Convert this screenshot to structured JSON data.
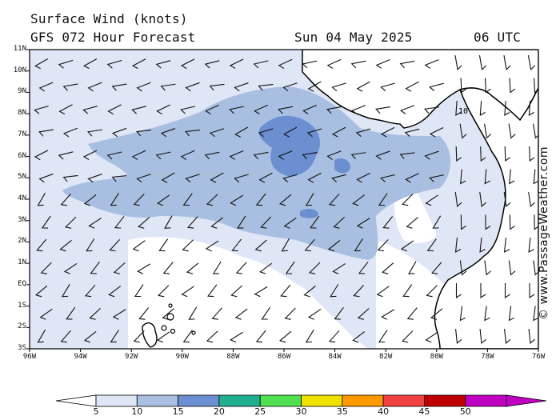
{
  "header": {
    "title": "Surface Wind (knots)",
    "model_forecast": "GFS 072 Hour Forecast",
    "date": "Sun 04 May 2025",
    "time": "06 UTC"
  },
  "map": {
    "latitude_labels": [
      "11N",
      "10N",
      "9N",
      "8N",
      "7N",
      "6N",
      "5N",
      "4N",
      "3N",
      "2N",
      "1N",
      "EQ",
      "1S",
      "2S",
      "3S"
    ],
    "longitude_labels": [
      "96W",
      "94W",
      "92W",
      "90W",
      "88W",
      "86W",
      "84W",
      "82W",
      "80W",
      "78W",
      "76W"
    ],
    "wind_speed_label": "10",
    "credit": "© www.PassageWeather.com",
    "colors": {
      "background": "#ffffff",
      "land_outline": "#000000",
      "barb": "#111111"
    }
  },
  "legend": {
    "labels": [
      "5",
      "10",
      "15",
      "20",
      "25",
      "30",
      "35",
      "40",
      "45",
      "50"
    ],
    "colors": [
      "#dfe6f5",
      "#a9bfe2",
      "#6b8fd0",
      "#20b090",
      "#50e050",
      "#f0e000",
      "#ff9900",
      "#f04040",
      "#c00000",
      "#c000c0"
    ]
  }
}
